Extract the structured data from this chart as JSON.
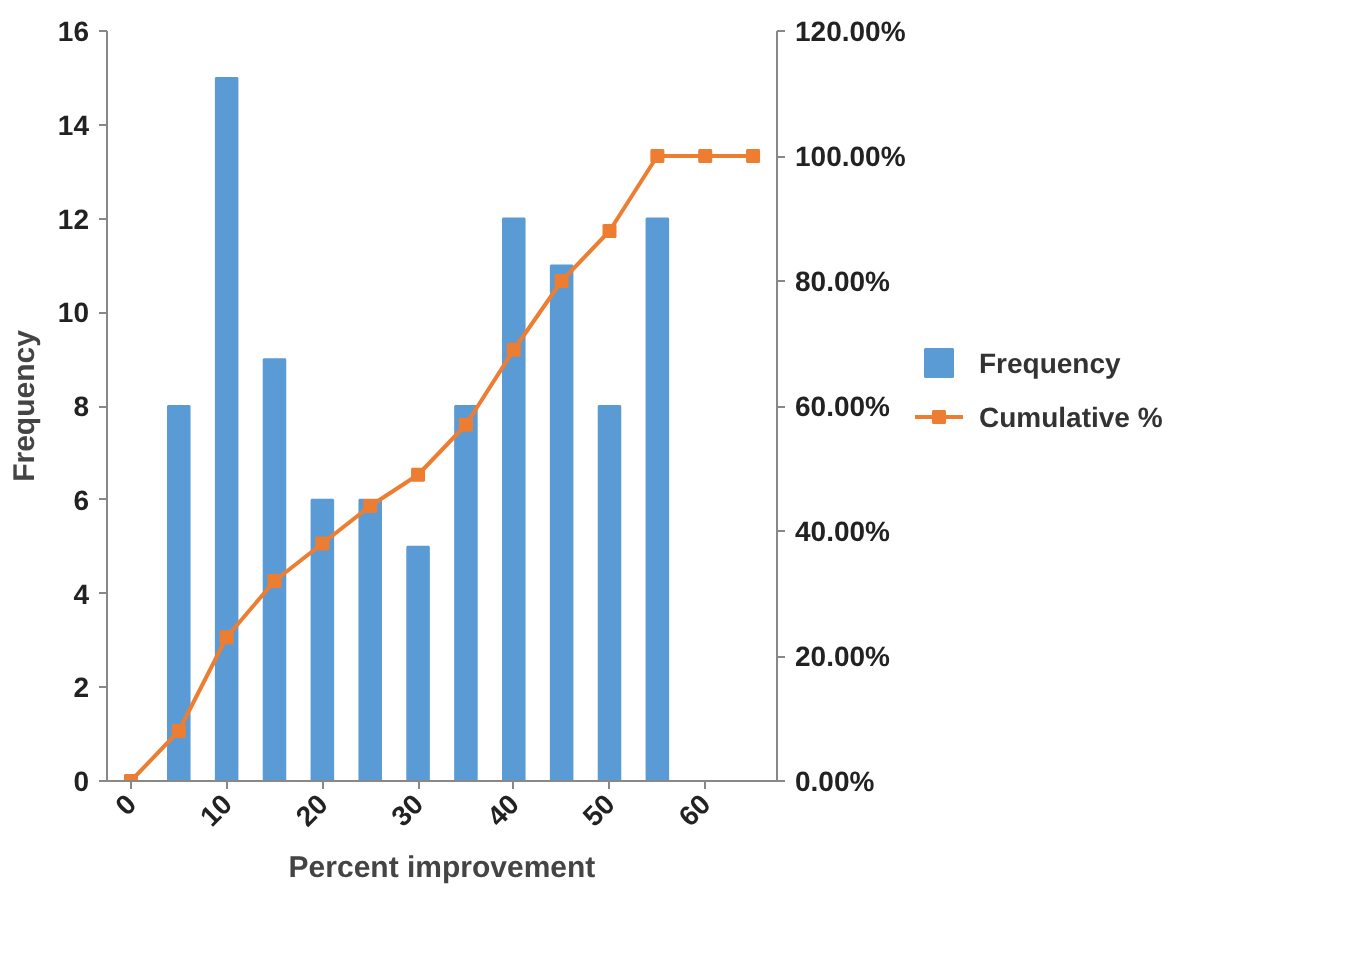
{
  "chart_data": {
    "type": "bar",
    "xlabel": "Percent improvement",
    "ylabel": "Frequency",
    "categories": [
      "0",
      null,
      "10",
      null,
      "20",
      null,
      "30",
      null,
      "40",
      null,
      "50",
      null,
      "60",
      null
    ],
    "series": [
      {
        "name": "Frequency",
        "color": "#5b9bd5",
        "values": [
          0,
          8,
          15,
          9,
          6,
          6,
          5,
          8,
          12,
          11,
          8,
          12,
          0,
          0
        ]
      },
      {
        "name": "Cumulative %",
        "type": "line",
        "axis": "y2",
        "color": "#ed7d31",
        "marker": "square",
        "values": [
          0,
          8,
          23,
          32,
          38,
          44,
          49,
          57,
          69,
          80,
          88,
          100,
          100,
          100
        ]
      }
    ],
    "ylim": [
      0,
      16
    ],
    "yticks": [
      0,
      2,
      4,
      6,
      8,
      10,
      12,
      14,
      16
    ],
    "y2lim": [
      0,
      120
    ],
    "y2ticks": [
      {
        "value": 0,
        "label": "0.00%"
      },
      {
        "value": 20,
        "label": "20.00%"
      },
      {
        "value": 40,
        "label": "40.00%"
      },
      {
        "value": 60,
        "label": "60.00%"
      },
      {
        "value": 80,
        "label": "80.00%"
      },
      {
        "value": 100,
        "label": "100.00%"
      },
      {
        "value": 120,
        "label": "120.00%"
      }
    ],
    "grid": false,
    "legend": "right"
  }
}
